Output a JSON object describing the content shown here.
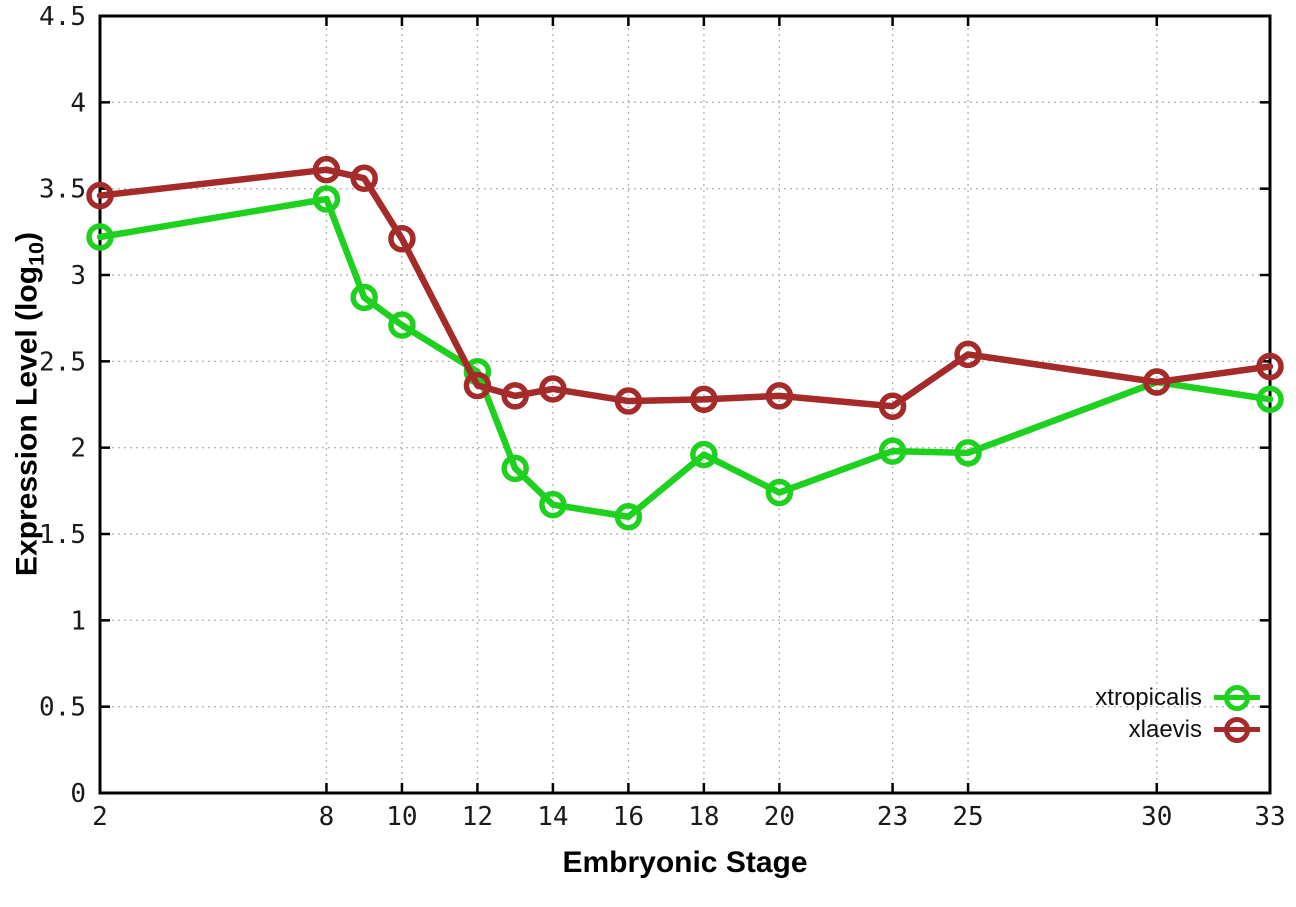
{
  "chart_data": {
    "type": "line",
    "title": "",
    "xlabel": "Embryonic Stage",
    "ylabel_pre": "Expression Level (log",
    "ylabel_sub": "10",
    "ylabel_post": ")",
    "xlim": [
      2,
      33
    ],
    "ylim": [
      0,
      4.5
    ],
    "x_ticks": [
      2,
      8,
      10,
      12,
      14,
      16,
      18,
      20,
      23,
      25,
      30,
      33
    ],
    "x_tick_labels": [
      "2",
      "8",
      "10",
      "12",
      "14",
      "16",
      "18",
      "20",
      "23",
      "25",
      "30",
      "33"
    ],
    "y_ticks": [
      0,
      0.5,
      1,
      1.5,
      2,
      2.5,
      3,
      3.5,
      4,
      4.5
    ],
    "y_tick_labels": [
      "0",
      "0.5",
      "1",
      "1.5",
      "2",
      "2.5",
      "3",
      "3.5",
      "4",
      "4.5"
    ],
    "grid": true,
    "legend_position": "inside-right-lower",
    "x": [
      2,
      8,
      9,
      10,
      12,
      13,
      14,
      16,
      18,
      20,
      23,
      25,
      30,
      33
    ],
    "series": [
      {
        "name": "xtropicalis",
        "color": "#1fd11f",
        "values": [
          3.22,
          3.44,
          2.87,
          2.71,
          2.44,
          1.88,
          1.67,
          1.6,
          1.96,
          1.74,
          1.98,
          1.97,
          2.38,
          2.28
        ]
      },
      {
        "name": "xlaevis",
        "color": "#a52a2a",
        "values": [
          3.46,
          3.61,
          3.56,
          3.21,
          2.36,
          2.3,
          2.34,
          2.27,
          2.28,
          2.3,
          2.24,
          2.54,
          2.38,
          2.47
        ]
      }
    ],
    "axis_color": "#000000",
    "grid_color": "#b8b8b8",
    "tick_label_color": "#1a1a1a"
  }
}
